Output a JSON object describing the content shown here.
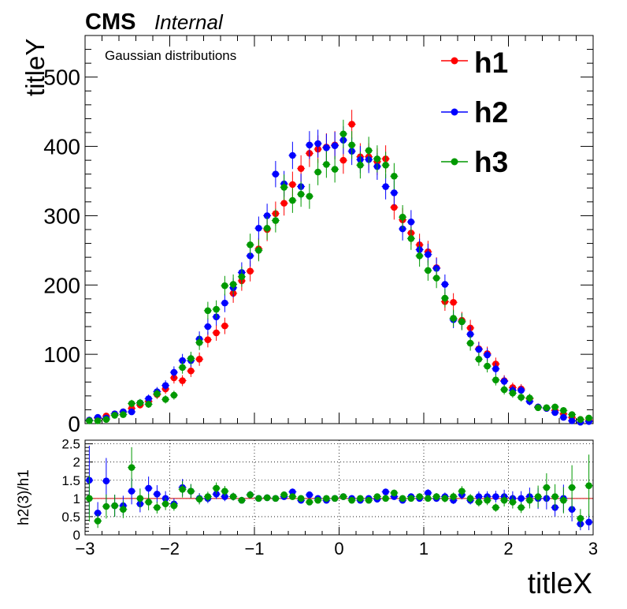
{
  "header": {
    "experiment": "CMS",
    "status": "Internal"
  },
  "annotation": "Gaussian distributions",
  "colors": {
    "h1": "#ff0000",
    "h2": "#0000ff",
    "h3": "#009900",
    "reference_line": "#cc0000",
    "axis": "#000000",
    "grid": "#000000"
  },
  "chart_data": [
    {
      "type": "scatter",
      "description_panel": "main",
      "xlabel": "titleX",
      "ylabel": "titleY",
      "xlim": [
        -3,
        3
      ],
      "ylim": [
        0,
        560
      ],
      "x_ticks": [
        -3,
        -2,
        -1,
        0,
        1,
        2,
        3
      ],
      "x_tick_labels": [
        "−3",
        "−2",
        "−1",
        "0",
        "1",
        "2",
        "3"
      ],
      "y_ticks": [
        0,
        100,
        200,
        300,
        400,
        500
      ],
      "y_tick_labels": [
        "0",
        "100",
        "200",
        "300",
        "400",
        "500"
      ],
      "grid": false,
      "legend_position": "top-right",
      "x": [
        -2.95,
        -2.85,
        -2.75,
        -2.65,
        -2.55,
        -2.45,
        -2.35,
        -2.25,
        -2.15,
        -2.05,
        -1.95,
        -1.85,
        -1.75,
        -1.65,
        -1.55,
        -1.45,
        -1.35,
        -1.25,
        -1.15,
        -1.05,
        -0.95,
        -0.85,
        -0.75,
        -0.65,
        -0.55,
        -0.45,
        -0.35,
        -0.25,
        -0.15,
        -0.05,
        0.05,
        0.15,
        0.25,
        0.35,
        0.45,
        0.55,
        0.65,
        0.75,
        0.85,
        0.95,
        1.05,
        1.15,
        1.25,
        1.35,
        1.45,
        1.55,
        1.65,
        1.75,
        1.85,
        1.95,
        2.05,
        2.15,
        2.25,
        2.35,
        2.45,
        2.55,
        2.65,
        2.75,
        2.85,
        2.95
      ],
      "series": [
        {
          "name": "h1",
          "values": [
            5,
            8,
            11,
            14,
            17,
            22,
            27,
            32,
            42,
            50,
            66,
            62,
            76,
            93,
            121,
            131,
            141,
            188,
            206,
            220,
            252,
            280,
            303,
            318,
            345,
            368,
            390,
            396,
            399,
            402,
            380,
            432,
            385,
            385,
            378,
            382,
            312,
            294,
            275,
            258,
            248,
            225,
            176,
            175,
            149,
            138,
            108,
            101,
            86,
            62,
            52,
            50,
            36,
            24,
            22,
            19,
            14,
            9,
            6,
            5
          ]
        },
        {
          "name": "h2",
          "values": [
            5,
            9,
            8,
            14,
            17,
            17,
            30,
            36,
            46,
            55,
            74,
            91,
            91,
            122,
            140,
            154,
            174,
            196,
            218,
            242,
            282,
            300,
            360,
            346,
            387,
            342,
            402,
            404,
            398,
            401,
            409,
            393,
            381,
            381,
            371,
            342,
            333,
            281,
            291,
            251,
            244,
            224,
            201,
            150,
            147,
            129,
            107,
            99,
            79,
            61,
            48,
            48,
            32,
            24,
            22,
            16,
            9,
            4,
            2,
            3
          ]
        },
        {
          "name": "h3",
          "values": [
            4,
            4,
            6,
            12,
            13,
            29,
            30,
            28,
            43,
            35,
            41,
            81,
            94,
            117,
            163,
            165,
            199,
            201,
            212,
            258,
            250,
            282,
            293,
            341,
            322,
            331,
            328,
            363,
            374,
            367,
            418,
            402,
            373,
            394,
            382,
            373,
            357,
            298,
            267,
            242,
            221,
            210,
            181,
            152,
            147,
            116,
            93,
            83,
            63,
            49,
            44,
            38,
            37,
            23,
            23,
            24,
            19,
            13,
            6,
            8
          ]
        }
      ]
    },
    {
      "type": "scatter",
      "description_panel": "ratio",
      "ylabel": "h2(3)/h1",
      "xlim": [
        -3,
        3
      ],
      "ylim": [
        0,
        2.6
      ],
      "x_ticks": [
        -3,
        -2,
        -1,
        0,
        1,
        2,
        3
      ],
      "x_tick_labels": [
        "−3",
        "−2",
        "−1",
        "0",
        "1",
        "2",
        "3"
      ],
      "y_ticks": [
        0,
        0.5,
        1,
        1.5,
        2,
        2.5
      ],
      "y_tick_labels": [
        "0",
        "0.5",
        "1",
        "1.5",
        "2",
        "2.5"
      ],
      "grid": true,
      "reference_line_y": 1,
      "x": [
        -2.95,
        -2.85,
        -2.75,
        -2.65,
        -2.55,
        -2.45,
        -2.35,
        -2.25,
        -2.15,
        -2.05,
        -1.95,
        -1.85,
        -1.75,
        -1.65,
        -1.55,
        -1.45,
        -1.35,
        -1.25,
        -1.15,
        -1.05,
        -0.95,
        -0.85,
        -0.75,
        -0.65,
        -0.55,
        -0.45,
        -0.35,
        -0.25,
        -0.15,
        -0.05,
        0.05,
        0.15,
        0.25,
        0.35,
        0.45,
        0.55,
        0.65,
        0.75,
        0.85,
        0.95,
        1.05,
        1.15,
        1.25,
        1.35,
        1.45,
        1.55,
        1.65,
        1.75,
        1.85,
        1.95,
        2.05,
        2.15,
        2.25,
        2.35,
        2.45,
        2.55,
        2.65,
        2.75,
        2.85,
        2.95
      ],
      "series": [
        {
          "name": "h2",
          "values": [
            1.5,
            0.6,
            1.48,
            0.8,
            0.8,
            1.2,
            0.85,
            1.28,
            1.12,
            1.0,
            0.85,
            1.3,
            1.2,
            1.0,
            1.0,
            1.12,
            1.05,
            1.05,
            0.95,
            1.1,
            1.0,
            1.02,
            1.0,
            1.05,
            1.18,
            0.95,
            1.1,
            1.0,
            0.95,
            1.0,
            1.05,
            1.0,
            0.95,
            1.0,
            0.98,
            1.18,
            1.05,
            0.95,
            1.05,
            1.0,
            1.15,
            1.0,
            1.05,
            0.95,
            1.1,
            0.95,
            1.05,
            1.05,
            1.05,
            1.05,
            1.0,
            1.0,
            1.05,
            1.0,
            1.0,
            0.75,
            1.0,
            0.7,
            0.3,
            0.35
          ]
        },
        {
          "name": "h3",
          "values": [
            1.0,
            0.38,
            0.78,
            0.8,
            0.7,
            1.85,
            1.0,
            0.9,
            0.75,
            0.85,
            0.8,
            1.25,
            1.2,
            0.98,
            1.05,
            1.28,
            1.2,
            1.05,
            0.95,
            1.1,
            1.0,
            1.02,
            1.0,
            1.1,
            1.05,
            1.0,
            0.9,
            0.95,
            1.0,
            1.0,
            1.05,
            0.95,
            1.0,
            0.95,
            1.05,
            1.0,
            1.15,
            1.0,
            1.0,
            1.05,
            1.0,
            1.05,
            1.0,
            1.05,
            1.2,
            1.0,
            0.9,
            0.95,
            0.75,
            0.95,
            0.9,
            0.75,
            0.95,
            1.05,
            1.3,
            1.05,
            0.95,
            1.3,
            0.45,
            1.35
          ]
        }
      ]
    }
  ]
}
